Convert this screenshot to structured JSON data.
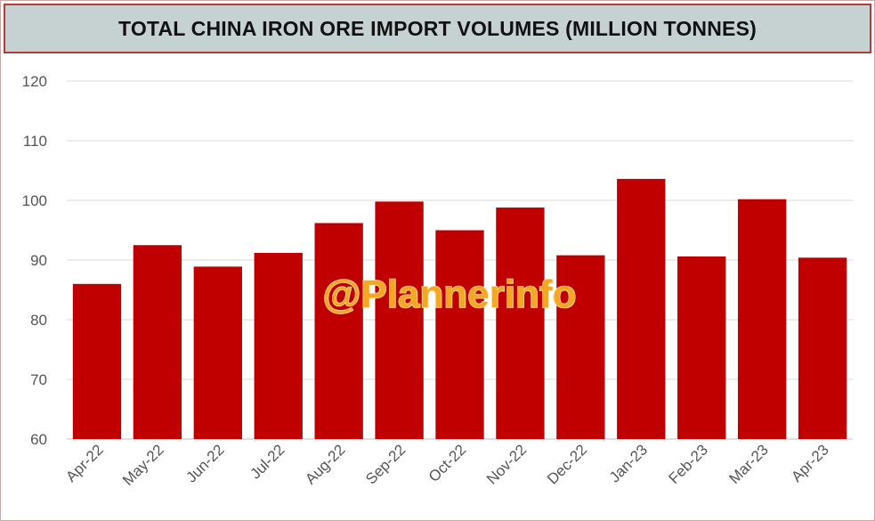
{
  "chart_data": {
    "type": "bar",
    "title": "TOTAL CHINA IRON ORE IMPORT VOLUMES (MILLION TONNES)",
    "categories": [
      "Apr-22",
      "May-22",
      "Jun-22",
      "Jul-22",
      "Aug-22",
      "Sep-22",
      "Oct-22",
      "Nov-22",
      "Dec-22",
      "Jan-23",
      "Feb-23",
      "Mar-23",
      "Apr-23"
    ],
    "values": [
      86.0,
      92.5,
      88.9,
      91.2,
      96.2,
      99.8,
      95.0,
      98.8,
      90.8,
      103.6,
      90.6,
      100.2,
      90.4
    ],
    "ylim": [
      60,
      120
    ],
    "yticks": [
      60,
      70,
      80,
      90,
      100,
      110,
      120
    ],
    "xlabel": "",
    "ylabel": "",
    "grid": true,
    "bar_color": "#c00000",
    "watermark": "@Plannerinfo"
  }
}
